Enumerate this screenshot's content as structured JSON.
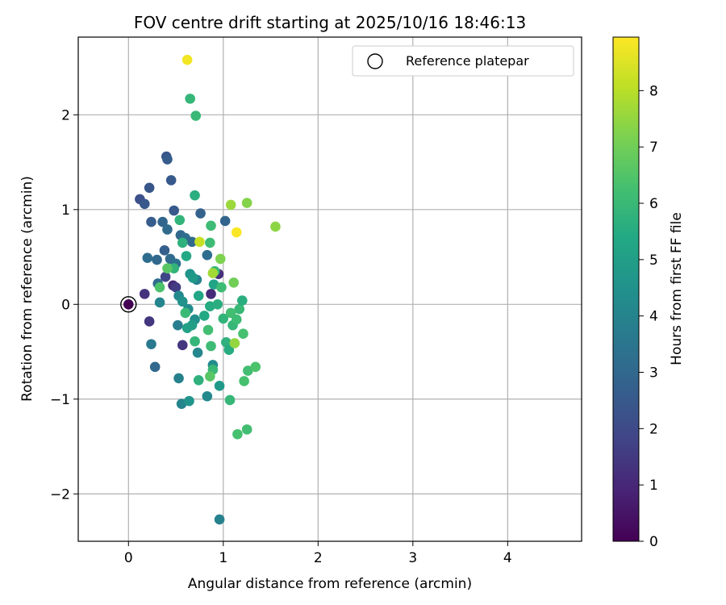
{
  "chart_data": {
    "type": "scatter",
    "title": "FOV centre drift starting at 2025/10/16 18:46:13",
    "xlabel": "Angular distance from reference (arcmin)",
    "ylabel": "Rotation from reference (arcmin)",
    "xlim": [
      -0.53,
      4.78
    ],
    "ylim": [
      -2.5,
      2.82
    ],
    "xticks": [
      0,
      1,
      2,
      3,
      4
    ],
    "xtick_labels": [
      "0",
      "1",
      "2",
      "3",
      "4"
    ],
    "yticks": [
      -2,
      -1,
      0,
      1,
      2
    ],
    "ytick_labels": [
      "−2",
      "−1",
      "0",
      "1",
      "2"
    ],
    "grid": true,
    "legend": {
      "location": "upper right",
      "entries": [
        "Reference platepar"
      ]
    },
    "reference_point": {
      "x": 0,
      "y": 0,
      "label": "Reference platepar"
    },
    "colorbar": {
      "label": "Hours from first FF file",
      "colormap": "viridis",
      "range": [
        0,
        8.95
      ],
      "ticks": [
        0,
        1,
        2,
        3,
        4,
        5,
        6,
        7,
        8
      ],
      "tick_labels": [
        "0",
        "1",
        "2",
        "3",
        "4",
        "5",
        "6",
        "7",
        "8"
      ]
    },
    "points": [
      [
        0.0,
        0.0,
        0.0
      ],
      [
        0.17,
        0.11,
        1.3
      ],
      [
        0.22,
        -0.18,
        1.4
      ],
      [
        0.47,
        0.2,
        1.1
      ],
      [
        0.57,
        -0.43,
        1.4
      ],
      [
        0.95,
        0.32,
        1.2
      ],
      [
        0.87,
        0.11,
        1.1
      ],
      [
        0.5,
        0.18,
        1.6
      ],
      [
        0.39,
        0.29,
        1.9
      ],
      [
        0.12,
        1.11,
        2.2
      ],
      [
        0.22,
        1.23,
        2.4
      ],
      [
        0.17,
        1.06,
        2.5
      ],
      [
        0.4,
        1.56,
        2.4
      ],
      [
        0.41,
        1.53,
        2.6
      ],
      [
        0.45,
        1.31,
        2.5
      ],
      [
        0.24,
        0.87,
        2.6
      ],
      [
        0.36,
        0.87,
        2.9
      ],
      [
        0.48,
        0.99,
        2.5
      ],
      [
        0.76,
        0.96,
        2.8
      ],
      [
        1.02,
        0.88,
        2.9
      ],
      [
        0.41,
        0.79,
        3.1
      ],
      [
        0.38,
        0.57,
        2.7
      ],
      [
        0.3,
        0.47,
        3.0
      ],
      [
        0.2,
        0.49,
        3.2
      ],
      [
        0.44,
        0.48,
        3.1
      ],
      [
        0.5,
        0.43,
        3.3
      ],
      [
        0.55,
        0.73,
        3.0
      ],
      [
        0.6,
        0.7,
        3.2
      ],
      [
        0.67,
        0.66,
        3.1
      ],
      [
        0.83,
        0.52,
        3.2
      ],
      [
        0.31,
        0.22,
        3.1
      ],
      [
        0.28,
        -0.66,
        3.0
      ],
      [
        0.24,
        -0.42,
        3.6
      ],
      [
        0.52,
        -0.22,
        3.8
      ],
      [
        0.53,
        -0.78,
        3.9
      ],
      [
        0.33,
        0.02,
        4.0
      ],
      [
        0.72,
        0.26,
        3.9
      ],
      [
        0.53,
        0.09,
        4.2
      ],
      [
        0.57,
        0.03,
        4.5
      ],
      [
        0.63,
        -0.05,
        4.3
      ],
      [
        0.65,
        0.32,
        4.6
      ],
      [
        0.68,
        0.28,
        4.8
      ],
      [
        0.7,
        -0.16,
        4.4
      ],
      [
        0.73,
        -0.51,
        4.1
      ],
      [
        0.89,
        -0.64,
        4.3
      ],
      [
        0.83,
        -0.97,
        4.2
      ],
      [
        0.56,
        -1.05,
        4.0
      ],
      [
        0.64,
        -1.02,
        4.6
      ],
      [
        0.96,
        -2.27,
        3.9
      ],
      [
        0.96,
        -0.86,
        4.8
      ],
      [
        0.62,
        -0.25,
        5.1
      ],
      [
        0.67,
        -0.22,
        5.0
      ],
      [
        0.74,
        0.09,
        5.3
      ],
      [
        0.8,
        -0.12,
        5.4
      ],
      [
        0.86,
        -0.02,
        5.5
      ],
      [
        0.9,
        0.21,
        5.2
      ],
      [
        0.94,
        0.0,
        5.6
      ],
      [
        1.0,
        -0.15,
        5.8
      ],
      [
        1.03,
        -0.4,
        5.7
      ],
      [
        1.06,
        -0.48,
        5.5
      ],
      [
        1.1,
        -0.22,
        5.9
      ],
      [
        1.17,
        -0.05,
        6.0
      ],
      [
        1.2,
        0.04,
        5.6
      ],
      [
        0.74,
        -0.8,
        5.7
      ],
      [
        0.89,
        -0.69,
        6.0
      ],
      [
        0.7,
        -0.39,
        5.9
      ],
      [
        0.57,
        0.65,
        5.7
      ],
      [
        0.61,
        0.51,
        5.4
      ],
      [
        0.54,
        0.89,
        5.8
      ],
      [
        0.7,
        1.15,
        5.6
      ],
      [
        0.65,
        2.17,
        5.9
      ],
      [
        0.71,
        1.99,
        6.0
      ],
      [
        0.86,
        0.65,
        6.1
      ],
      [
        0.87,
        0.83,
        6.1
      ],
      [
        0.91,
        0.35,
        6.0
      ],
      [
        0.98,
        0.18,
        6.1
      ],
      [
        1.08,
        -0.09,
        6.2
      ],
      [
        1.14,
        -0.16,
        6.1
      ],
      [
        1.21,
        -0.31,
        6.3
      ],
      [
        1.26,
        -0.7,
        6.2
      ],
      [
        1.34,
        -0.66,
        6.4
      ],
      [
        1.22,
        -0.81,
        6.3
      ],
      [
        1.15,
        -1.37,
        6.3
      ],
      [
        1.25,
        -1.32,
        6.2
      ],
      [
        1.07,
        -1.01,
        5.9
      ],
      [
        0.87,
        -0.44,
        6.1
      ],
      [
        0.84,
        -0.27,
        6.2
      ],
      [
        0.6,
        -0.09,
        6.0
      ],
      [
        0.48,
        0.38,
        5.8
      ],
      [
        0.41,
        0.38,
        6.6
      ],
      [
        0.33,
        0.18,
        6.4
      ],
      [
        0.86,
        -0.76,
        6.6
      ],
      [
        0.97,
        0.48,
        7.2
      ],
      [
        0.89,
        0.33,
        7.7
      ],
      [
        1.11,
        0.23,
        7.0
      ],
      [
        1.12,
        -0.41,
        7.5
      ],
      [
        1.08,
        1.05,
        7.6
      ],
      [
        1.25,
        1.07,
        7.3
      ],
      [
        1.55,
        0.82,
        7.4
      ],
      [
        0.75,
        0.66,
        8.2
      ],
      [
        0.62,
        2.58,
        8.8
      ],
      [
        1.14,
        0.76,
        8.9
      ]
    ]
  }
}
